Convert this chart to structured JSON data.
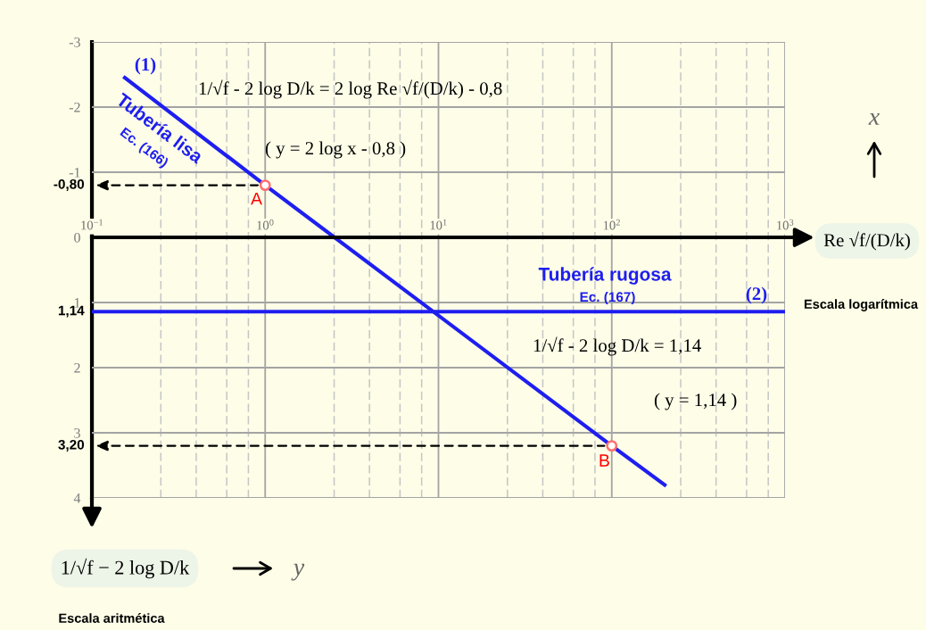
{
  "chart_data": {
    "type": "line",
    "xlabel": "Re √f/(D/k)",
    "ylabel": "1/√f − 2 log D/k",
    "log": "x",
    "xlim": [
      0.1,
      1000
    ],
    "ylim": [
      4,
      -3
    ],
    "xticks": [
      {
        "value": 0.1,
        "label": "10$^{−1}$"
      },
      {
        "value": 0.25,
        "label": null
      },
      {
        "value": 0.4,
        "label": null
      },
      {
        "value": 0.6,
        "label": null
      },
      {
        "value": 0.8,
        "label": null
      },
      {
        "value": 1,
        "label": "10$^{0}$"
      },
      {
        "value": 2.5,
        "label": null
      },
      {
        "value": 4,
        "label": null
      },
      {
        "value": 6,
        "label": null
      },
      {
        "value": 8,
        "label": null
      },
      {
        "value": 10,
        "label": "10$^{1}$"
      },
      {
        "value": 25,
        "label": null
      },
      {
        "value": 40,
        "label": null
      },
      {
        "value": 60,
        "label": null
      },
      {
        "value": 80,
        "label": null
      },
      {
        "value": 100,
        "label": "10$^{2}$"
      },
      {
        "value": 250,
        "label": null
      },
      {
        "value": 400,
        "label": null
      },
      {
        "value": 600,
        "label": null
      },
      {
        "value": 800,
        "label": null
      },
      {
        "value": 1000,
        "label": "10$^{3}$"
      }
    ],
    "yticks": [
      -3,
      -2,
      -1,
      0,
      1,
      2,
      3,
      4
    ],
    "grid": true,
    "series": [
      {
        "name": "Tubería lisa",
        "color": "#1e1ef0",
        "x": [
          0.155,
          1,
          100,
          202
        ],
        "values": [
          -2.45,
          -0.8,
          3.2,
          3.8
        ]
      },
      {
        "name": "Tubería rugosa",
        "color": "#1e1ef0",
        "x": [
          0.1,
          1000
        ],
        "values": [
          1.14,
          1.14
        ]
      },
      {
        "type": "scatter",
        "color": "#ff7070",
        "marker": "circle",
        "x": [
          1,
          100
        ],
        "values": [
          -0.8,
          3.2
        ]
      }
    ],
    "annotations": [
      "(1)",
      "1/√f - 2 log D/k = 2 log Re √f/(D/k) - 0,8",
      "( y = 2 log x - 0,8 )",
      "Ec. (166)",
      "Ec. (167)",
      "(2)",
      "1/√f - 2 log D/k = 1,14",
      "( y = 1,14 )",
      {
        "text": "-0,80",
        "x": 1,
        "y": -0.8
      },
      {
        "text": "1,14",
        "x": 0.1,
        "y": 1.14
      },
      {
        "text": "3,20",
        "x": 100,
        "y": 3.2
      },
      {
        "text": "A",
        "x": 1,
        "y": -0.8
      },
      {
        "text": "B",
        "x": 100,
        "y": 3.2
      },
      "x",
      "Escala logarítmica",
      "y",
      "Escala aritmética"
    ]
  }
}
